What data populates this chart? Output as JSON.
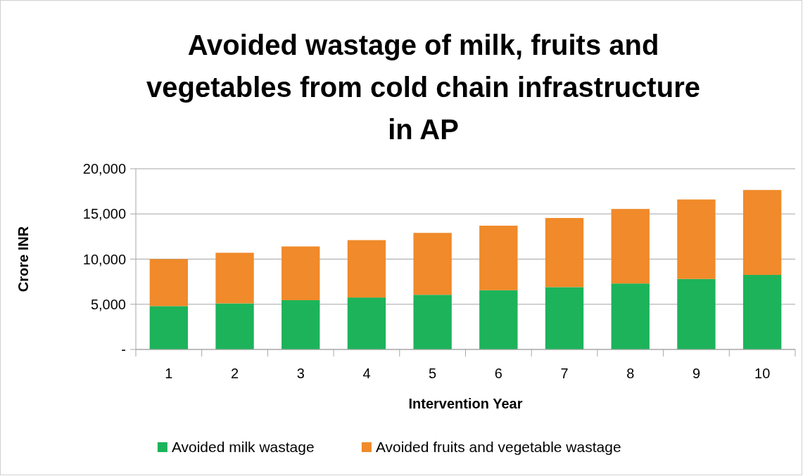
{
  "chart_data": {
    "type": "bar",
    "title": "Avoided wastage of milk, fruits and vegetables from cold chain infrastructure in AP",
    "xlabel": "Intervention Year",
    "ylabel": "Crore INR",
    "categories": [
      "1",
      "2",
      "3",
      "4",
      "5",
      "6",
      "7",
      "8",
      "9",
      "10"
    ],
    "stacked": true,
    "series": [
      {
        "name": "Avoided milk wastage",
        "color": "#1db35a",
        "values": [
          4800,
          5100,
          5450,
          5750,
          6050,
          6550,
          6900,
          7300,
          7800,
          8250
        ]
      },
      {
        "name": "Avoided fruits and vegetable wastage",
        "color": "#f08a2a",
        "values": [
          5200,
          5600,
          5950,
          6350,
          6850,
          7150,
          7650,
          8250,
          8800,
          9400
        ]
      }
    ],
    "ylim": [
      0,
      20000
    ],
    "yticks": [
      {
        "value": 0,
        "label": "-"
      },
      {
        "value": 5000,
        "label": "5,000"
      },
      {
        "value": 10000,
        "label": "10,000"
      },
      {
        "value": 15000,
        "label": "15,000"
      },
      {
        "value": 20000,
        "label": "20,000"
      }
    ],
    "grid": "y",
    "legend": "bottom"
  }
}
